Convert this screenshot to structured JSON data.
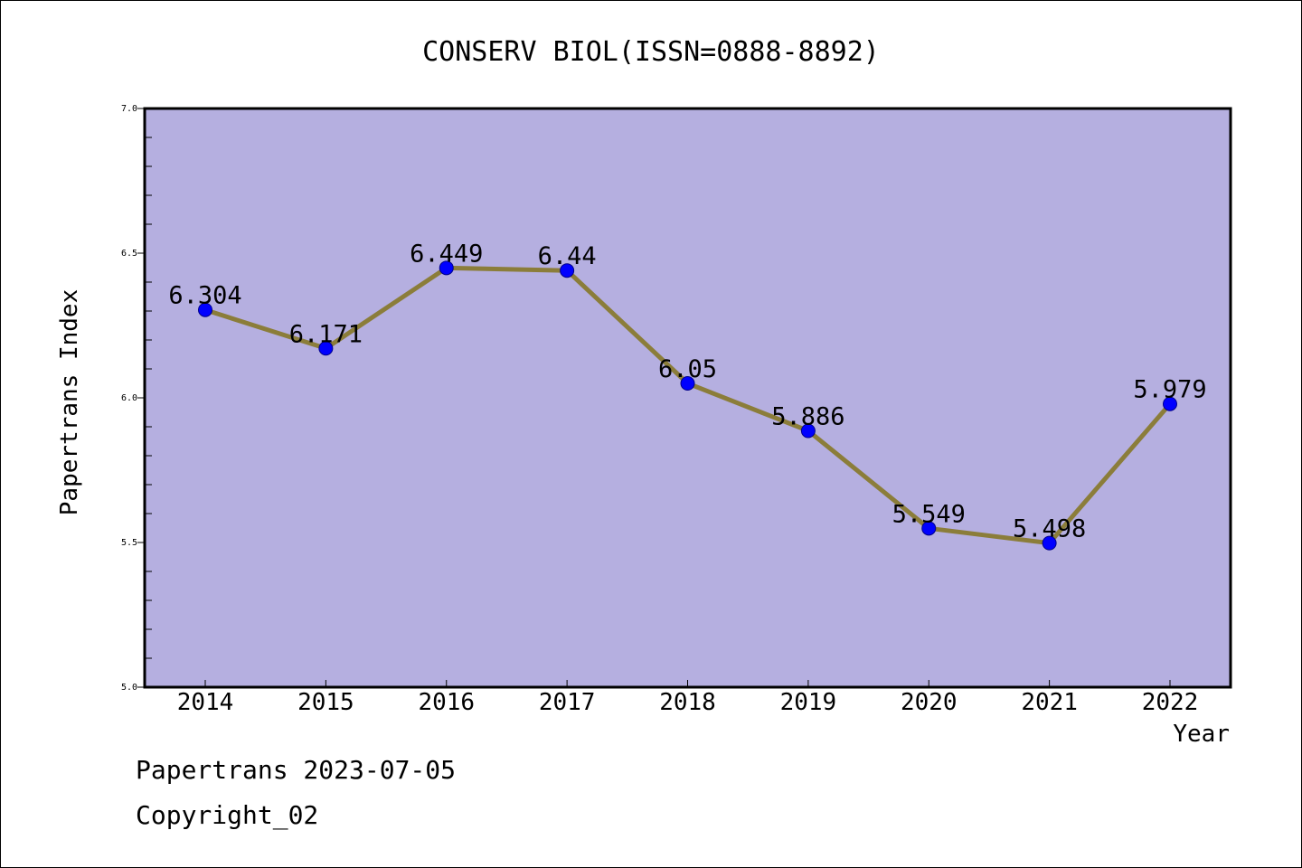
{
  "footer": {
    "source_line": "Papertrans 2023-07-05",
    "copyright_line": "Copyright_02"
  },
  "chart_data": {
    "type": "line",
    "title": "CONSERV BIOL(ISSN=0888-8892)",
    "xlabel": "Year",
    "ylabel": "Papertrans Index",
    "categories": [
      "2014",
      "2015",
      "2016",
      "2017",
      "2018",
      "2019",
      "2020",
      "2021",
      "2022"
    ],
    "series": [
      {
        "values": [
          6.304,
          6.171,
          6.449,
          6.44,
          6.05,
          5.886,
          5.549,
          5.498,
          5.979
        ],
        "data_labels": [
          "6.304",
          "6.171",
          "6.449",
          "6.44",
          "6.05",
          "5.886",
          "5.549",
          "5.498",
          "5.979"
        ],
        "line_color": "#8b7d3a",
        "marker_color": "#0000ff"
      }
    ],
    "ylim": [
      5.0,
      7.0
    ],
    "yticks": [
      "5.0",
      "5.5",
      "6.0",
      "6.5",
      "7.0"
    ],
    "plot_background": "#b5afe0",
    "grid": false,
    "legend": "none"
  }
}
